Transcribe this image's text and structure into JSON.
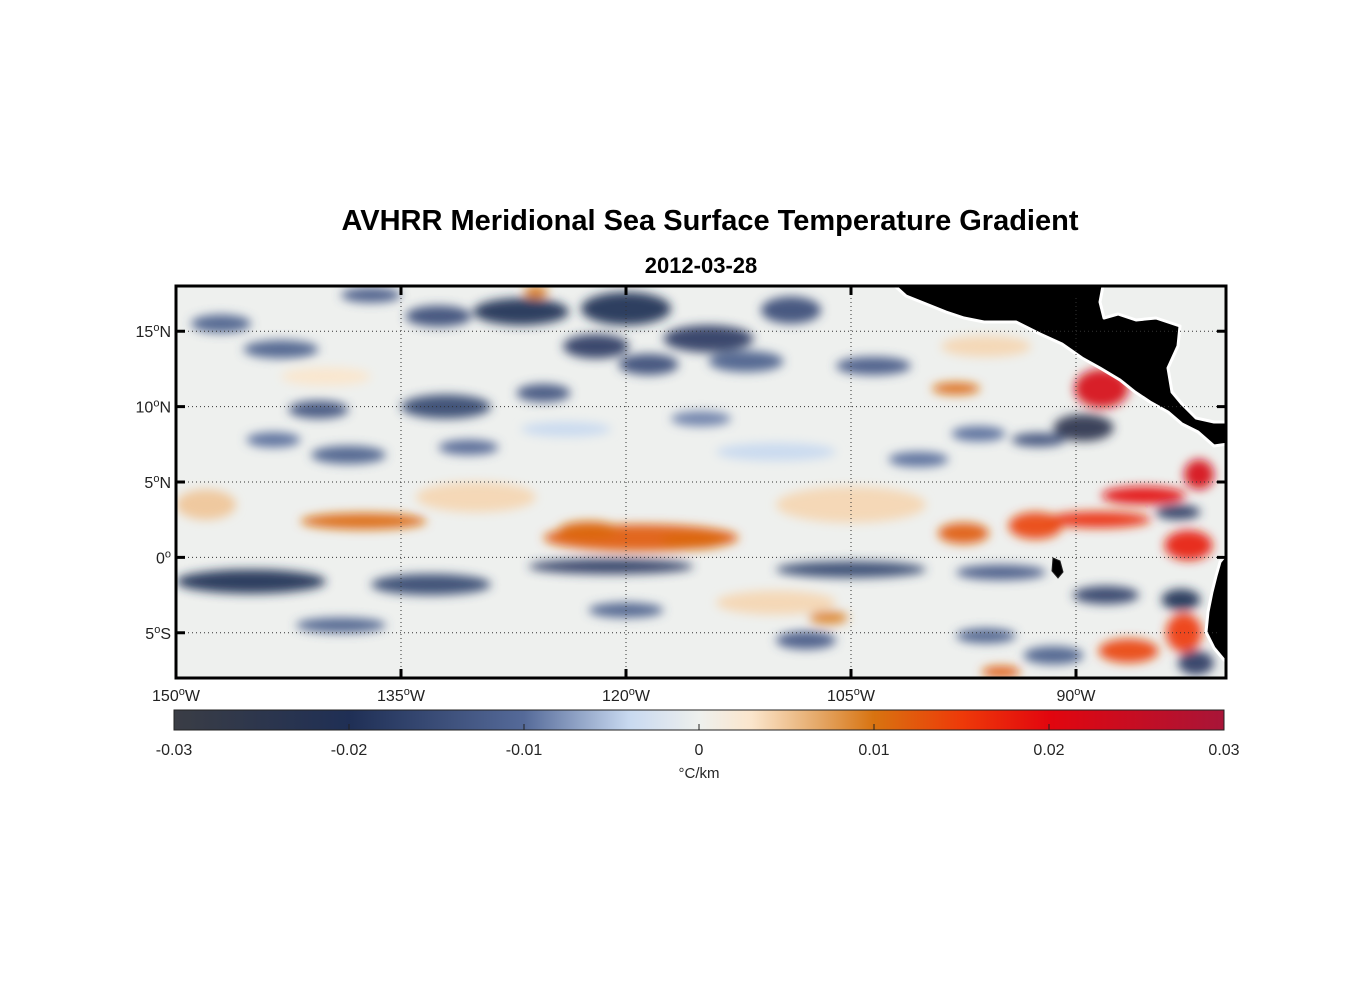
{
  "title": "AVHRR Meridional Sea Surface Temperature Gradient",
  "subtitle": "2012-03-28",
  "map": {
    "lon_range": [
      -150,
      -80
    ],
    "lat_range": [
      -8,
      18
    ],
    "lon_ticks": [
      {
        "value": -150,
        "num": "150",
        "hem": "W"
      },
      {
        "value": -135,
        "num": "135",
        "hem": "W"
      },
      {
        "value": -120,
        "num": "120",
        "hem": "W"
      },
      {
        "value": -105,
        "num": "105",
        "hem": "W"
      },
      {
        "value": -90,
        "num": "90",
        "hem": "W"
      }
    ],
    "lat_ticks": [
      {
        "value": 15,
        "num": "15",
        "hem": "N"
      },
      {
        "value": 10,
        "num": "10",
        "hem": "N"
      },
      {
        "value": 5,
        "num": "5",
        "hem": "N"
      },
      {
        "value": 0,
        "num": "0",
        "hem": ""
      },
      {
        "value": -5,
        "num": "5",
        "hem": "S"
      }
    ],
    "degree_mark": "o",
    "land_color": "#808080",
    "features": [
      {
        "lon": -137.5,
        "lat": 2.4,
        "rx": 4.2,
        "ry": 0.55,
        "v": 0.011
      },
      {
        "lon": -119,
        "lat": 1.3,
        "rx": 6.5,
        "ry": 0.9,
        "v": 0.012
      },
      {
        "lon": -122.5,
        "lat": 1.8,
        "rx": 2.0,
        "ry": 0.6,
        "v": 0.011
      },
      {
        "lon": -115.5,
        "lat": 1.1,
        "rx": 2.2,
        "ry": 0.55,
        "v": 0.011
      },
      {
        "lon": -88.3,
        "lat": 11.2,
        "rx": 1.8,
        "ry": 1.3,
        "v": 0.022
      },
      {
        "lon": -89.5,
        "lat": 8.6,
        "rx": 2.0,
        "ry": 0.9,
        "v": -0.024
      },
      {
        "lon": -92.5,
        "lat": 7.8,
        "rx": 1.8,
        "ry": 0.45,
        "v": -0.015
      },
      {
        "lon": -81.8,
        "lat": 5.5,
        "rx": 1.0,
        "ry": 1.0,
        "v": 0.022
      },
      {
        "lon": -85.5,
        "lat": 4.1,
        "rx": 2.8,
        "ry": 0.6,
        "v": 0.019
      },
      {
        "lon": -88.5,
        "lat": 2.5,
        "rx": 3.5,
        "ry": 0.55,
        "v": 0.016
      },
      {
        "lon": -92.7,
        "lat": 2.1,
        "rx": 1.8,
        "ry": 0.9,
        "v": 0.014
      },
      {
        "lon": -97.5,
        "lat": 1.6,
        "rx": 1.7,
        "ry": 0.7,
        "v": 0.012
      },
      {
        "lon": -82.5,
        "lat": 0.8,
        "rx": 1.6,
        "ry": 1.0,
        "v": 0.018
      },
      {
        "lon": -82.8,
        "lat": -5.0,
        "rx": 1.2,
        "ry": 1.3,
        "v": 0.015
      },
      {
        "lon": -86.5,
        "lat": -6.2,
        "rx": 2.0,
        "ry": 0.8,
        "v": 0.014
      },
      {
        "lon": -95.0,
        "lat": -7.6,
        "rx": 1.3,
        "ry": 0.4,
        "v": 0.012
      },
      {
        "lon": -98.0,
        "lat": 11.2,
        "rx": 1.6,
        "ry": 0.4,
        "v": 0.011
      },
      {
        "lon": -106.5,
        "lat": -4.0,
        "rx": 1.3,
        "ry": 0.45,
        "v": 0.009
      },
      {
        "lon": -126.0,
        "lat": 17.6,
        "rx": 0.8,
        "ry": 0.4,
        "v": 0.01
      },
      {
        "lon": -127.0,
        "lat": 16.3,
        "rx": 3.2,
        "ry": 0.9,
        "v": -0.02
      },
      {
        "lon": -120.0,
        "lat": 16.5,
        "rx": 3.0,
        "ry": 1.1,
        "v": -0.02
      },
      {
        "lon": -122.0,
        "lat": 14.0,
        "rx": 2.2,
        "ry": 0.8,
        "v": -0.018
      },
      {
        "lon": -114.5,
        "lat": 14.5,
        "rx": 3.0,
        "ry": 0.9,
        "v": -0.018
      },
      {
        "lon": -118.5,
        "lat": 12.8,
        "rx": 2.0,
        "ry": 0.7,
        "v": -0.015
      },
      {
        "lon": -132.5,
        "lat": 16.0,
        "rx": 2.2,
        "ry": 0.7,
        "v": -0.015
      },
      {
        "lon": -137.0,
        "lat": 17.4,
        "rx": 2.0,
        "ry": 0.5,
        "v": -0.013
      },
      {
        "lon": -132.0,
        "lat": 10.0,
        "rx": 3.0,
        "ry": 0.8,
        "v": -0.016
      },
      {
        "lon": -140.5,
        "lat": 9.8,
        "rx": 2.0,
        "ry": 0.6,
        "v": -0.014
      },
      {
        "lon": -143.0,
        "lat": 13.8,
        "rx": 2.5,
        "ry": 0.6,
        "v": -0.012
      },
      {
        "lon": -125.5,
        "lat": 10.9,
        "rx": 1.8,
        "ry": 0.6,
        "v": -0.014
      },
      {
        "lon": -147.0,
        "lat": 15.5,
        "rx": 2.0,
        "ry": 0.6,
        "v": -0.012
      },
      {
        "lon": -112.0,
        "lat": 13.0,
        "rx": 2.5,
        "ry": 0.7,
        "v": -0.012
      },
      {
        "lon": -109.0,
        "lat": 16.4,
        "rx": 2.0,
        "ry": 0.9,
        "v": -0.015
      },
      {
        "lon": -103.5,
        "lat": 12.7,
        "rx": 2.5,
        "ry": 0.6,
        "v": -0.013
      },
      {
        "lon": -138.5,
        "lat": 6.8,
        "rx": 2.5,
        "ry": 0.6,
        "v": -0.012
      },
      {
        "lon": -130.5,
        "lat": 7.3,
        "rx": 2.0,
        "ry": 0.5,
        "v": -0.011
      },
      {
        "lon": -143.5,
        "lat": 7.8,
        "rx": 1.8,
        "ry": 0.5,
        "v": -0.01
      },
      {
        "lon": -145.0,
        "lat": -1.6,
        "rx": 5.0,
        "ry": 0.8,
        "v": -0.02
      },
      {
        "lon": -133.0,
        "lat": -1.8,
        "rx": 4.0,
        "ry": 0.7,
        "v": -0.016
      },
      {
        "lon": -121.0,
        "lat": -0.6,
        "rx": 5.5,
        "ry": 0.5,
        "v": -0.018
      },
      {
        "lon": -105.0,
        "lat": -0.8,
        "rx": 5.0,
        "ry": 0.55,
        "v": -0.016
      },
      {
        "lon": -95.0,
        "lat": -1.0,
        "rx": 3.0,
        "ry": 0.5,
        "v": -0.013
      },
      {
        "lon": -88.0,
        "lat": -2.5,
        "rx": 2.2,
        "ry": 0.6,
        "v": -0.017
      },
      {
        "lon": -139.0,
        "lat": -4.5,
        "rx": 3.0,
        "ry": 0.5,
        "v": -0.012
      },
      {
        "lon": -120.0,
        "lat": -3.5,
        "rx": 2.5,
        "ry": 0.5,
        "v": -0.012
      },
      {
        "lon": -108.0,
        "lat": -5.5,
        "rx": 2.0,
        "ry": 0.6,
        "v": -0.013
      },
      {
        "lon": -96.0,
        "lat": -5.2,
        "rx": 2.0,
        "ry": 0.5,
        "v": -0.012
      },
      {
        "lon": -83.0,
        "lat": -2.8,
        "rx": 1.3,
        "ry": 0.7,
        "v": -0.02
      },
      {
        "lon": -83.2,
        "lat": 3.0,
        "rx": 1.5,
        "ry": 0.5,
        "v": -0.018
      },
      {
        "lon": -82.0,
        "lat": -7.0,
        "rx": 1.2,
        "ry": 0.8,
        "v": -0.018
      },
      {
        "lon": -91.5,
        "lat": -6.5,
        "rx": 2.0,
        "ry": 0.6,
        "v": -0.012
      },
      {
        "lon": -100.5,
        "lat": 6.5,
        "rx": 2.0,
        "ry": 0.5,
        "v": -0.01
      },
      {
        "lon": -96.5,
        "lat": 8.2,
        "rx": 1.8,
        "ry": 0.5,
        "v": -0.01
      },
      {
        "lon": -115.0,
        "lat": 9.2,
        "rx": 2.0,
        "ry": 0.5,
        "v": -0.009
      },
      {
        "lon": -148.0,
        "lat": 3.5,
        "rx": 2.0,
        "ry": 1.0,
        "v": 0.005
      },
      {
        "lon": -130.0,
        "lat": 4.0,
        "rx": 4.0,
        "ry": 1.0,
        "v": 0.004
      },
      {
        "lon": -105.0,
        "lat": 3.5,
        "rx": 5.0,
        "ry": 1.2,
        "v": 0.004
      },
      {
        "lon": -110.0,
        "lat": -3.0,
        "rx": 4.0,
        "ry": 0.8,
        "v": 0.004
      },
      {
        "lon": -140.0,
        "lat": 12.0,
        "rx": 3.0,
        "ry": 0.6,
        "v": 0.003
      },
      {
        "lon": -124.0,
        "lat": 8.5,
        "rx": 3.0,
        "ry": 0.5,
        "v": -0.004
      },
      {
        "lon": -110.0,
        "lat": 7.0,
        "rx": 4.0,
        "ry": 0.6,
        "v": -0.004
      },
      {
        "lon": -96.0,
        "lat": 14.0,
        "rx": 3.0,
        "ry": 0.7,
        "v": 0.004
      }
    ]
  },
  "colorbar": {
    "min": -0.03,
    "max": 0.03,
    "ticks": [
      {
        "value": -0.03,
        "label": "-0.03"
      },
      {
        "value": -0.02,
        "label": "-0.02"
      },
      {
        "value": -0.01,
        "label": "-0.01"
      },
      {
        "value": 0,
        "label": "0"
      },
      {
        "value": 0.01,
        "label": "0.01"
      },
      {
        "value": 0.02,
        "label": "0.02"
      },
      {
        "value": 0.03,
        "label": "0.03"
      }
    ],
    "stops": [
      {
        "v": -0.03,
        "color": "#3a3d45"
      },
      {
        "v": -0.02,
        "color": "#1f2f55"
      },
      {
        "v": -0.01,
        "color": "#556a99"
      },
      {
        "v": -0.004,
        "color": "#c8d9f0"
      },
      {
        "v": 0,
        "color": "#eef0ee"
      },
      {
        "v": 0.003,
        "color": "#fbe6cc"
      },
      {
        "v": 0.007,
        "color": "#e4a563"
      },
      {
        "v": 0.01,
        "color": "#d87310"
      },
      {
        "v": 0.015,
        "color": "#ee3a09"
      },
      {
        "v": 0.02,
        "color": "#e2060e"
      },
      {
        "v": 0.03,
        "color": "#a81538"
      }
    ],
    "unit": "°C/km"
  }
}
